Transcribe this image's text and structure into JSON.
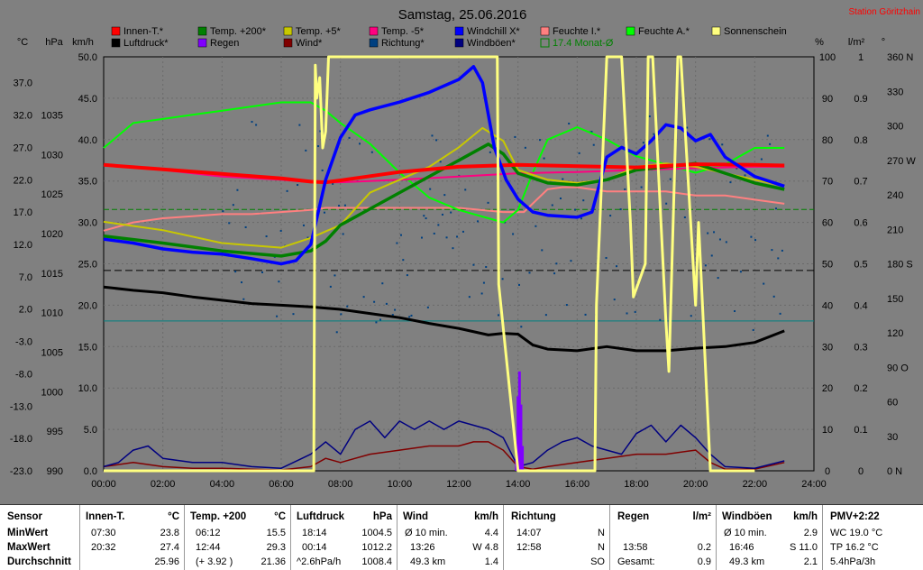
{
  "title": "Samstag, 25.06.2016",
  "station": "Station Göritzhain",
  "axes": {
    "unit_c": "°C",
    "unit_hpa": "hPa",
    "unit_kmh": "km/h",
    "unit_pct": "%",
    "unit_lm2": "l/m²",
    "unit_deg": "°",
    "temp_ticks": [
      "37.0",
      "32.0",
      "27.0",
      "22.0",
      "17.0",
      "12.0",
      "7.0",
      "2.0",
      "-3.0",
      "-8.0",
      "-13.0",
      "-18.0",
      "-23.0"
    ],
    "hpa_ticks": [
      "1035",
      "1030",
      "1025",
      "1020",
      "1015",
      "1010",
      "1005",
      "1000",
      "995",
      "990"
    ],
    "kmh_ticks": [
      "50.0",
      "45.0",
      "40.0",
      "35.0",
      "30.0",
      "25.0",
      "20.0",
      "15.0",
      "10.0",
      "5.0",
      "0.0"
    ],
    "pct_ticks": [
      "100",
      "90",
      "80",
      "70",
      "60",
      "50",
      "40",
      "30",
      "20",
      "10",
      "0"
    ],
    "rain_ticks": [
      "1",
      "0.9",
      "0.8",
      "0.7",
      "0.6",
      "0.5",
      "0.4",
      "0.3",
      "0.2",
      "0.1",
      "0"
    ],
    "deg_ticks": [
      "360 N",
      "330",
      "300",
      "270 W",
      "240",
      "210",
      "180 S",
      "150",
      "120",
      "90 O",
      "60",
      "30",
      "0 N"
    ],
    "time_ticks": [
      "00:00",
      "02:00",
      "04:00",
      "06:00",
      "08:00",
      "10:00",
      "12:00",
      "14:00",
      "16:00",
      "18:00",
      "20:00",
      "22:00",
      "24:00"
    ]
  },
  "legend": [
    {
      "label": "Innen-T.*",
      "color": "#ff0000"
    },
    {
      "label": "Temp. +200*",
      "color": "#008000"
    },
    {
      "label": "Temp. +5*",
      "color": "#c8c800"
    },
    {
      "label": "Temp. -5*",
      "color": "#ff0080"
    },
    {
      "label": "Windchill X*",
      "color": "#0000ff"
    },
    {
      "label": "Feuchte I.*",
      "color": "#ff8080"
    },
    {
      "label": "Feuchte A.*",
      "color": "#00ff00"
    },
    {
      "label": "Sonnenschein",
      "color": "#ffff80"
    },
    {
      "label": "Luftdruck*",
      "color": "#000000"
    },
    {
      "label": "Regen",
      "color": "#8000ff"
    },
    {
      "label": "Wind*",
      "color": "#800000"
    },
    {
      "label": "Richtung*",
      "color": "#004080"
    },
    {
      "label": "Windböen*",
      "color": "#000080"
    },
    {
      "label": "17.4 Monat-Ø",
      "color": "#008000"
    }
  ],
  "chart_data": {
    "type": "line",
    "x_unit": "hour",
    "xlim": [
      0,
      24
    ],
    "series": [
      {
        "name": "Innen-T.*",
        "color": "#ff0000",
        "axis": "temp",
        "x": [
          0,
          2,
          4,
          6,
          7,
          7.5,
          8,
          10,
          12,
          14,
          16,
          18,
          20,
          22,
          23
        ],
        "y": [
          24.3,
          23.6,
          22.9,
          22.2,
          21.7,
          21.6,
          21.9,
          23.2,
          24.0,
          24.3,
          24.1,
          23.9,
          24.4,
          24.3,
          24.2
        ]
      },
      {
        "name": "Temp. +200*",
        "color": "#008000",
        "axis": "temp",
        "x": [
          0,
          2,
          4,
          6,
          7,
          7.5,
          8,
          10,
          12,
          13,
          13.5,
          14,
          15,
          16,
          17,
          18,
          19,
          20,
          21,
          22,
          23
        ],
        "y": [
          13.3,
          12.2,
          11.0,
          10.2,
          11.0,
          12.5,
          15.0,
          20.0,
          25.0,
          27.5,
          26.0,
          23.0,
          21.5,
          21.2,
          22.0,
          23.5,
          24.0,
          24.5,
          23.0,
          21.5,
          20.5
        ]
      },
      {
        "name": "Temp. +5*",
        "color": "#c8c800",
        "axis": "temp",
        "x": [
          0,
          2,
          4,
          6,
          7,
          7.5,
          8,
          9,
          10,
          11,
          12,
          12.8,
          13.5,
          14,
          15,
          16,
          17,
          18,
          19,
          20,
          21,
          22,
          23
        ],
        "y": [
          15.5,
          14.2,
          12.2,
          11.5,
          13.0,
          14.0,
          15.0,
          20.0,
          22.0,
          24.0,
          27.0,
          30.0,
          28.0,
          23.5,
          22.0,
          21.5,
          22.0,
          24.0,
          24.5,
          24.0,
          23.0,
          22.0,
          21.0
        ]
      },
      {
        "name": "Temp. -5*",
        "color": "#ff0080",
        "axis": "temp",
        "x": [
          0,
          2,
          4,
          6,
          7,
          8,
          10,
          12,
          14,
          16,
          18,
          20,
          22,
          23
        ],
        "y": [
          24.3,
          23.5,
          22.5,
          22.0,
          21.6,
          21.6,
          22.0,
          22.5,
          23.0,
          23.2,
          23.5,
          23.8,
          24.0,
          24.0
        ]
      },
      {
        "name": "Windchill X*",
        "color": "#0000ff",
        "axis": "temp",
        "x": [
          0,
          1,
          2,
          3,
          4,
          5,
          6,
          6.5,
          7,
          7.5,
          8,
          8.5,
          9,
          10,
          11,
          12,
          12.5,
          12.8,
          13.2,
          13.6,
          14,
          14.5,
          15,
          16,
          16.5,
          17,
          17.5,
          18,
          18.5,
          19,
          19.5,
          20,
          20.5,
          21,
          22,
          23
        ],
        "y": [
          12.8,
          12.2,
          11.3,
          10.8,
          10.5,
          9.8,
          9.0,
          9.5,
          12.0,
          22.0,
          28.5,
          32.0,
          32.8,
          34.0,
          35.5,
          37.5,
          39.5,
          37.0,
          27.0,
          22.0,
          19.0,
          17.0,
          16.5,
          16.2,
          17.0,
          25.5,
          27.0,
          26.0,
          28.0,
          30.5,
          30.0,
          28.0,
          29.0,
          25.5,
          22.5,
          21.0
        ]
      },
      {
        "name": "Feuchte I.*",
        "color": "#ff8080",
        "axis": "pct",
        "x": [
          0,
          1,
          2,
          3,
          4,
          5,
          6,
          7,
          7.5,
          8,
          10,
          12,
          13.5,
          14.2,
          15,
          15.5,
          16,
          17,
          18,
          19,
          20,
          21,
          22,
          23
        ],
        "y": [
          58,
          60,
          61,
          61.5,
          62,
          62,
          62.5,
          63,
          63.5,
          63.5,
          63.5,
          63.5,
          62.5,
          62.5,
          68,
          68.5,
          68.5,
          67.5,
          67.5,
          67.5,
          66.5,
          66.5,
          65.5,
          64.5
        ]
      },
      {
        "name": "Feuchte A.*",
        "color": "#00ff00",
        "axis": "pct",
        "x": [
          0,
          1,
          2,
          3,
          4,
          5,
          6,
          7,
          7.5,
          8,
          9,
          10,
          11,
          12,
          13,
          13.5,
          14,
          14.5,
          15,
          16,
          17,
          18,
          19,
          20,
          21,
          22,
          23
        ],
        "y": [
          78,
          84,
          85,
          86,
          87,
          88,
          89,
          89,
          87,
          84,
          79,
          72,
          66,
          63,
          61,
          60,
          63,
          72,
          80,
          83,
          80,
          76,
          74,
          72,
          74,
          78,
          78
        ]
      },
      {
        "name": "Luftdruck*",
        "color": "#000000",
        "axis": "hpa",
        "x": [
          0,
          1,
          2,
          3,
          4,
          5,
          6,
          7,
          8,
          9,
          10,
          11,
          12,
          13,
          13.5,
          14,
          14.5,
          15,
          16,
          17,
          18,
          19,
          20,
          21,
          22,
          23
        ],
        "y": [
          1012.2,
          1011.8,
          1011.5,
          1011.0,
          1010.6,
          1010.2,
          1010.0,
          1009.8,
          1009.5,
          1009.0,
          1008.5,
          1007.8,
          1007.2,
          1006.4,
          1006.6,
          1006.5,
          1005.2,
          1004.7,
          1004.5,
          1005.0,
          1004.5,
          1004.5,
          1004.8,
          1005.0,
          1005.5,
          1006.9
        ]
      },
      {
        "name": "Wind*",
        "color": "#800000",
        "axis": "kmh",
        "x": [
          0,
          1,
          2,
          3,
          4,
          5,
          6,
          7,
          7.5,
          8,
          9,
          10,
          11,
          12,
          12.5,
          13,
          13.5,
          14,
          14.5,
          15,
          16,
          17,
          18,
          19,
          20,
          20.5,
          21,
          22,
          23
        ],
        "y": [
          0.5,
          1.0,
          0.5,
          0.3,
          0.3,
          0.2,
          0.1,
          0.5,
          1.5,
          1.0,
          2.0,
          2.5,
          3.0,
          3.0,
          3.5,
          3.5,
          2.5,
          0.5,
          0.2,
          0.5,
          1.0,
          1.5,
          2.0,
          2.0,
          2.5,
          1.0,
          0.2,
          0.2,
          1.0
        ]
      },
      {
        "name": "Windböen*",
        "color": "#000080",
        "axis": "kmh",
        "x": [
          0,
          0.5,
          1,
          1.5,
          2,
          3,
          4,
          5,
          6,
          7,
          7.5,
          8,
          8.5,
          9,
          9.5,
          10,
          10.5,
          11,
          11.5,
          12,
          12.5,
          13,
          13.5,
          14,
          14.5,
          15,
          15.5,
          16,
          16.5,
          17,
          17.5,
          18,
          18.5,
          19,
          19.5,
          20,
          20.5,
          21,
          22,
          23
        ],
        "y": [
          0.5,
          1.0,
          2.5,
          3.0,
          1.5,
          1.0,
          1.0,
          0.5,
          0.3,
          2.0,
          3.5,
          2.0,
          5.0,
          6.0,
          4.0,
          6.0,
          5.0,
          6.0,
          5.0,
          6.0,
          5.5,
          5.0,
          4.0,
          0.5,
          1.0,
          2.5,
          3.5,
          4.0,
          3.0,
          2.5,
          2.0,
          4.5,
          5.5,
          3.5,
          5.5,
          4.0,
          2.0,
          0.5,
          0.3,
          1.2
        ]
      },
      {
        "name": "Regen",
        "color": "#8000ff",
        "axis": "rain",
        "x": [
          13.95,
          14.0,
          14.05,
          14.1,
          14.15,
          14.2
        ],
        "y": [
          0.05,
          0.18,
          0.24,
          0.16,
          0.06,
          0.0
        ]
      },
      {
        "name": "Sonnenschein",
        "color": "#ffff80",
        "axis": "pct",
        "x": [
          0,
          7.1,
          7.15,
          7.2,
          7.3,
          7.4,
          7.5,
          7.6,
          13.3,
          13.35,
          14.0,
          16.6,
          16.65,
          17.0,
          17.5,
          17.8,
          17.9,
          18.3,
          18.4,
          18.55,
          19.0,
          19.1,
          19.4,
          19.5,
          20.0,
          20.1,
          20.5,
          22
        ],
        "y": [
          0,
          0,
          98,
          90,
          95,
          78,
          82,
          100,
          100,
          45,
          0,
          0,
          40,
          100,
          100,
          60,
          42,
          50,
          100,
          100,
          36,
          24,
          100,
          100,
          40,
          60,
          0,
          0
        ]
      }
    ],
    "richtung_points": "scattered dots 4:00-23:00",
    "hlines": [
      {
        "label": "17.4 Monat-Ø",
        "axis": "temp",
        "value": 17.4,
        "color": "#008000"
      },
      {
        "axis": "kmh",
        "value": 24.2,
        "color": "#000000"
      },
      {
        "axis": "kmh",
        "value": 18.1,
        "color": "#008080"
      }
    ]
  },
  "stats": {
    "sensor": {
      "h": "Sensor",
      "r1": "MinWert",
      "r2": "MaxWert",
      "r3": "Durchschnitt"
    },
    "innen": {
      "h": "Innen-T.",
      "u": "°C",
      "r1t": "07:30",
      "r1v": "23.8",
      "r2t": "20:32",
      "r2v": "27.4",
      "r3v": "25.96"
    },
    "temp": {
      "h": "Temp. +200",
      "u": "°C",
      "r1t": "06:12",
      "r1v": "15.5",
      "r2t": "12:44",
      "r2v": "29.3",
      "r3t": "(+ 3.92 )",
      "r3v": "21.36"
    },
    "druck": {
      "h": "Luftdruck",
      "u": "hPa",
      "r1t": "18:14",
      "r1v": "1004.5",
      "r2t": "00:14",
      "r2v": "1012.2",
      "r3t": "^2.6hPa/h",
      "r3v": "1008.4"
    },
    "wind": {
      "h": "Wind",
      "u": "km/h",
      "r1t": "Ø 10 min.",
      "r1v": "4.4",
      "r2t": "13:26",
      "r2v": "W 4.8",
      "r3t": "49.3 km",
      "r3v": "1.4"
    },
    "richtung": {
      "h": "Richtung",
      "r1t": "14:07",
      "r1v": "N",
      "r2t": "12:58",
      "r2v": "N",
      "r3v": "SO"
    },
    "regen": {
      "h": "Regen",
      "u": "l/m²",
      "r2t": "13:58",
      "r2v": "0.2",
      "r3t": "Gesamt:",
      "r3v": "0.9"
    },
    "boeen": {
      "h": "Windböen",
      "u": "km/h",
      "r1t": "Ø 10 min.",
      "r1v": "2.9",
      "r2t": "16:46",
      "r2v": "S 11.0",
      "r3t": "49.3 km",
      "r3v": "2.1"
    },
    "pmv": {
      "h": "PMV+2:22",
      "r1": "WC 19.0 °C",
      "r2": "TP 16.2 °C",
      "r3": "5.4hPa/3h"
    }
  }
}
